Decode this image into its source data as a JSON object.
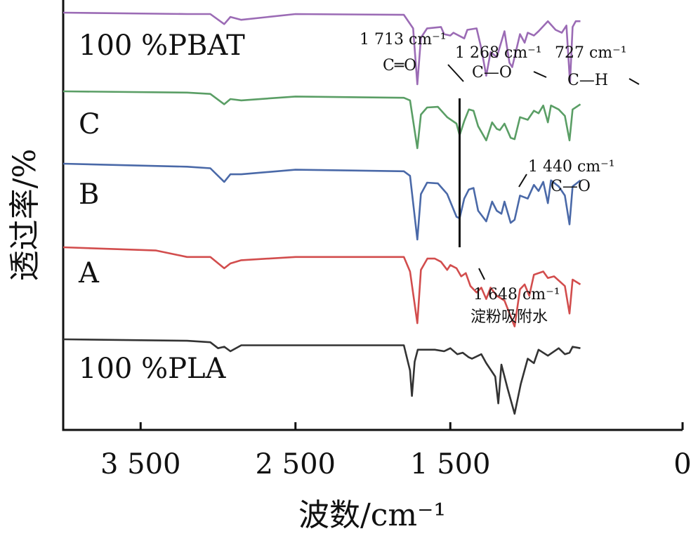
{
  "chart_data": {
    "type": "line",
    "xlabel": "波数/cm⁻¹",
    "ylabel": "透过率/%",
    "x_reversed": true,
    "xlim": [
      4000,
      0
    ],
    "xticks": [
      3500,
      2500,
      1500,
      0
    ],
    "xtick_labels": [
      "3 500",
      "2 500",
      "1 500",
      "0"
    ],
    "series": [
      {
        "name": "100 %PBAT",
        "color": "#9b6bb5",
        "points": [
          [
            4000,
            0.0
          ],
          [
            3200,
            0.02
          ],
          [
            3050,
            0.02
          ],
          [
            2960,
            0.16
          ],
          [
            2920,
            0.06
          ],
          [
            2850,
            0.1
          ],
          [
            2500,
            0.02
          ],
          [
            1800,
            0.03
          ],
          [
            1740,
            0.22
          ],
          [
            1713,
            1.0
          ],
          [
            1690,
            0.35
          ],
          [
            1650,
            0.22
          ],
          [
            1560,
            0.2
          ],
          [
            1540,
            0.3
          ],
          [
            1500,
            0.32
          ],
          [
            1480,
            0.28
          ],
          [
            1410,
            0.36
          ],
          [
            1390,
            0.24
          ],
          [
            1330,
            0.22
          ],
          [
            1300,
            0.5
          ],
          [
            1268,
            0.88
          ],
          [
            1240,
            0.55
          ],
          [
            1200,
            0.62
          ],
          [
            1150,
            0.26
          ],
          [
            1118,
            0.7
          ],
          [
            1100,
            0.76
          ],
          [
            1050,
            0.3
          ],
          [
            1020,
            0.42
          ],
          [
            1000,
            0.28
          ],
          [
            960,
            0.32
          ],
          [
            930,
            0.26
          ],
          [
            870,
            0.12
          ],
          [
            820,
            0.24
          ],
          [
            780,
            0.28
          ],
          [
            750,
            0.18
          ],
          [
            727,
            0.98
          ],
          [
            710,
            0.2
          ],
          [
            690,
            0.12
          ],
          [
            660,
            0.12
          ]
        ]
      },
      {
        "name": "C",
        "color": "#5a9e65",
        "points": [
          [
            4000,
            0.0
          ],
          [
            3200,
            0.02
          ],
          [
            3050,
            0.04
          ],
          [
            2960,
            0.2
          ],
          [
            2920,
            0.12
          ],
          [
            2850,
            0.14
          ],
          [
            2500,
            0.08
          ],
          [
            1800,
            0.1
          ],
          [
            1760,
            0.14
          ],
          [
            1713,
            0.88
          ],
          [
            1690,
            0.36
          ],
          [
            1650,
            0.25
          ],
          [
            1580,
            0.24
          ],
          [
            1520,
            0.4
          ],
          [
            1460,
            0.5
          ],
          [
            1440,
            0.68
          ],
          [
            1410,
            0.46
          ],
          [
            1380,
            0.28
          ],
          [
            1350,
            0.3
          ],
          [
            1320,
            0.54
          ],
          [
            1268,
            0.76
          ],
          [
            1230,
            0.48
          ],
          [
            1200,
            0.58
          ],
          [
            1180,
            0.6
          ],
          [
            1150,
            0.5
          ],
          [
            1110,
            0.72
          ],
          [
            1085,
            0.74
          ],
          [
            1050,
            0.4
          ],
          [
            1000,
            0.44
          ],
          [
            960,
            0.3
          ],
          [
            930,
            0.34
          ],
          [
            900,
            0.22
          ],
          [
            870,
            0.48
          ],
          [
            850,
            0.22
          ],
          [
            800,
            0.28
          ],
          [
            760,
            0.38
          ],
          [
            730,
            0.76
          ],
          [
            710,
            0.28
          ],
          [
            660,
            0.2
          ]
        ]
      },
      {
        "name": "B",
        "color": "#4a69a8",
        "points": [
          [
            4000,
            0.0
          ],
          [
            3200,
            0.04
          ],
          [
            3050,
            0.06
          ],
          [
            2960,
            0.24
          ],
          [
            2920,
            0.14
          ],
          [
            2850,
            0.14
          ],
          [
            2500,
            0.08
          ],
          [
            1800,
            0.1
          ],
          [
            1760,
            0.16
          ],
          [
            1713,
            1.0
          ],
          [
            1690,
            0.4
          ],
          [
            1650,
            0.25
          ],
          [
            1580,
            0.26
          ],
          [
            1520,
            0.4
          ],
          [
            1460,
            0.7
          ],
          [
            1440,
            0.72
          ],
          [
            1410,
            0.46
          ],
          [
            1380,
            0.34
          ],
          [
            1350,
            0.32
          ],
          [
            1320,
            0.62
          ],
          [
            1268,
            0.76
          ],
          [
            1230,
            0.5
          ],
          [
            1200,
            0.62
          ],
          [
            1170,
            0.66
          ],
          [
            1150,
            0.5
          ],
          [
            1110,
            0.78
          ],
          [
            1085,
            0.74
          ],
          [
            1050,
            0.42
          ],
          [
            1000,
            0.46
          ],
          [
            960,
            0.28
          ],
          [
            930,
            0.36
          ],
          [
            900,
            0.24
          ],
          [
            870,
            0.52
          ],
          [
            850,
            0.22
          ],
          [
            800,
            0.3
          ],
          [
            760,
            0.42
          ],
          [
            730,
            0.8
          ],
          [
            710,
            0.3
          ],
          [
            660,
            0.22
          ]
        ]
      },
      {
        "name": "A",
        "color": "#d24d4d",
        "points": [
          [
            4000,
            0.0
          ],
          [
            3400,
            0.04
          ],
          [
            3200,
            0.12
          ],
          [
            3050,
            0.12
          ],
          [
            2960,
            0.26
          ],
          [
            2920,
            0.2
          ],
          [
            2850,
            0.16
          ],
          [
            2500,
            0.12
          ],
          [
            1800,
            0.12
          ],
          [
            1760,
            0.3
          ],
          [
            1713,
            0.94
          ],
          [
            1690,
            0.28
          ],
          [
            1648,
            0.14
          ],
          [
            1600,
            0.14
          ],
          [
            1560,
            0.18
          ],
          [
            1520,
            0.28
          ],
          [
            1500,
            0.22
          ],
          [
            1460,
            0.26
          ],
          [
            1430,
            0.36
          ],
          [
            1400,
            0.32
          ],
          [
            1370,
            0.48
          ],
          [
            1330,
            0.56
          ],
          [
            1300,
            0.5
          ],
          [
            1268,
            0.64
          ],
          [
            1240,
            0.5
          ],
          [
            1200,
            0.6
          ],
          [
            1150,
            0.66
          ],
          [
            1085,
            0.98
          ],
          [
            1050,
            0.52
          ],
          [
            1020,
            0.46
          ],
          [
            990,
            0.6
          ],
          [
            960,
            0.34
          ],
          [
            900,
            0.3
          ],
          [
            870,
            0.38
          ],
          [
            830,
            0.36
          ],
          [
            760,
            0.48
          ],
          [
            730,
            0.82
          ],
          [
            710,
            0.4
          ],
          [
            660,
            0.46
          ]
        ]
      },
      {
        "name": "100 %PLA",
        "color": "#333333",
        "points": [
          [
            4000,
            0.0
          ],
          [
            3200,
            0.02
          ],
          [
            3050,
            0.04
          ],
          [
            3000,
            0.12
          ],
          [
            2960,
            0.1
          ],
          [
            2920,
            0.16
          ],
          [
            2850,
            0.08
          ],
          [
            2500,
            0.08
          ],
          [
            1800,
            0.08
          ],
          [
            1760,
            0.42
          ],
          [
            1748,
            0.76
          ],
          [
            1730,
            0.3
          ],
          [
            1710,
            0.14
          ],
          [
            1600,
            0.14
          ],
          [
            1540,
            0.16
          ],
          [
            1500,
            0.12
          ],
          [
            1455,
            0.2
          ],
          [
            1420,
            0.18
          ],
          [
            1382,
            0.24
          ],
          [
            1360,
            0.26
          ],
          [
            1300,
            0.2
          ],
          [
            1268,
            0.32
          ],
          [
            1210,
            0.5
          ],
          [
            1190,
            0.86
          ],
          [
            1170,
            0.34
          ],
          [
            1130,
            0.66
          ],
          [
            1085,
            1.0
          ],
          [
            1045,
            0.6
          ],
          [
            1000,
            0.26
          ],
          [
            960,
            0.32
          ],
          [
            930,
            0.14
          ],
          [
            870,
            0.22
          ],
          [
            800,
            0.12
          ],
          [
            760,
            0.2
          ],
          [
            730,
            0.18
          ],
          [
            710,
            0.1
          ],
          [
            660,
            0.12
          ]
        ]
      }
    ],
    "annotations": [
      {
        "line1": "1 713 cm⁻¹",
        "line2": "C═O",
        "x": 1713
      },
      {
        "line1": "1 268 cm⁻¹",
        "line2": "C—O",
        "x": 1268
      },
      {
        "line1": "727 cm⁻¹",
        "line2": "C—H",
        "x": 727
      },
      {
        "line1": "1 440 cm⁻¹",
        "line2": "C—O",
        "x": 1440
      },
      {
        "line1": "1 648 cm⁻¹",
        "line2": "淀粉吸附水",
        "x": 1648
      }
    ]
  }
}
